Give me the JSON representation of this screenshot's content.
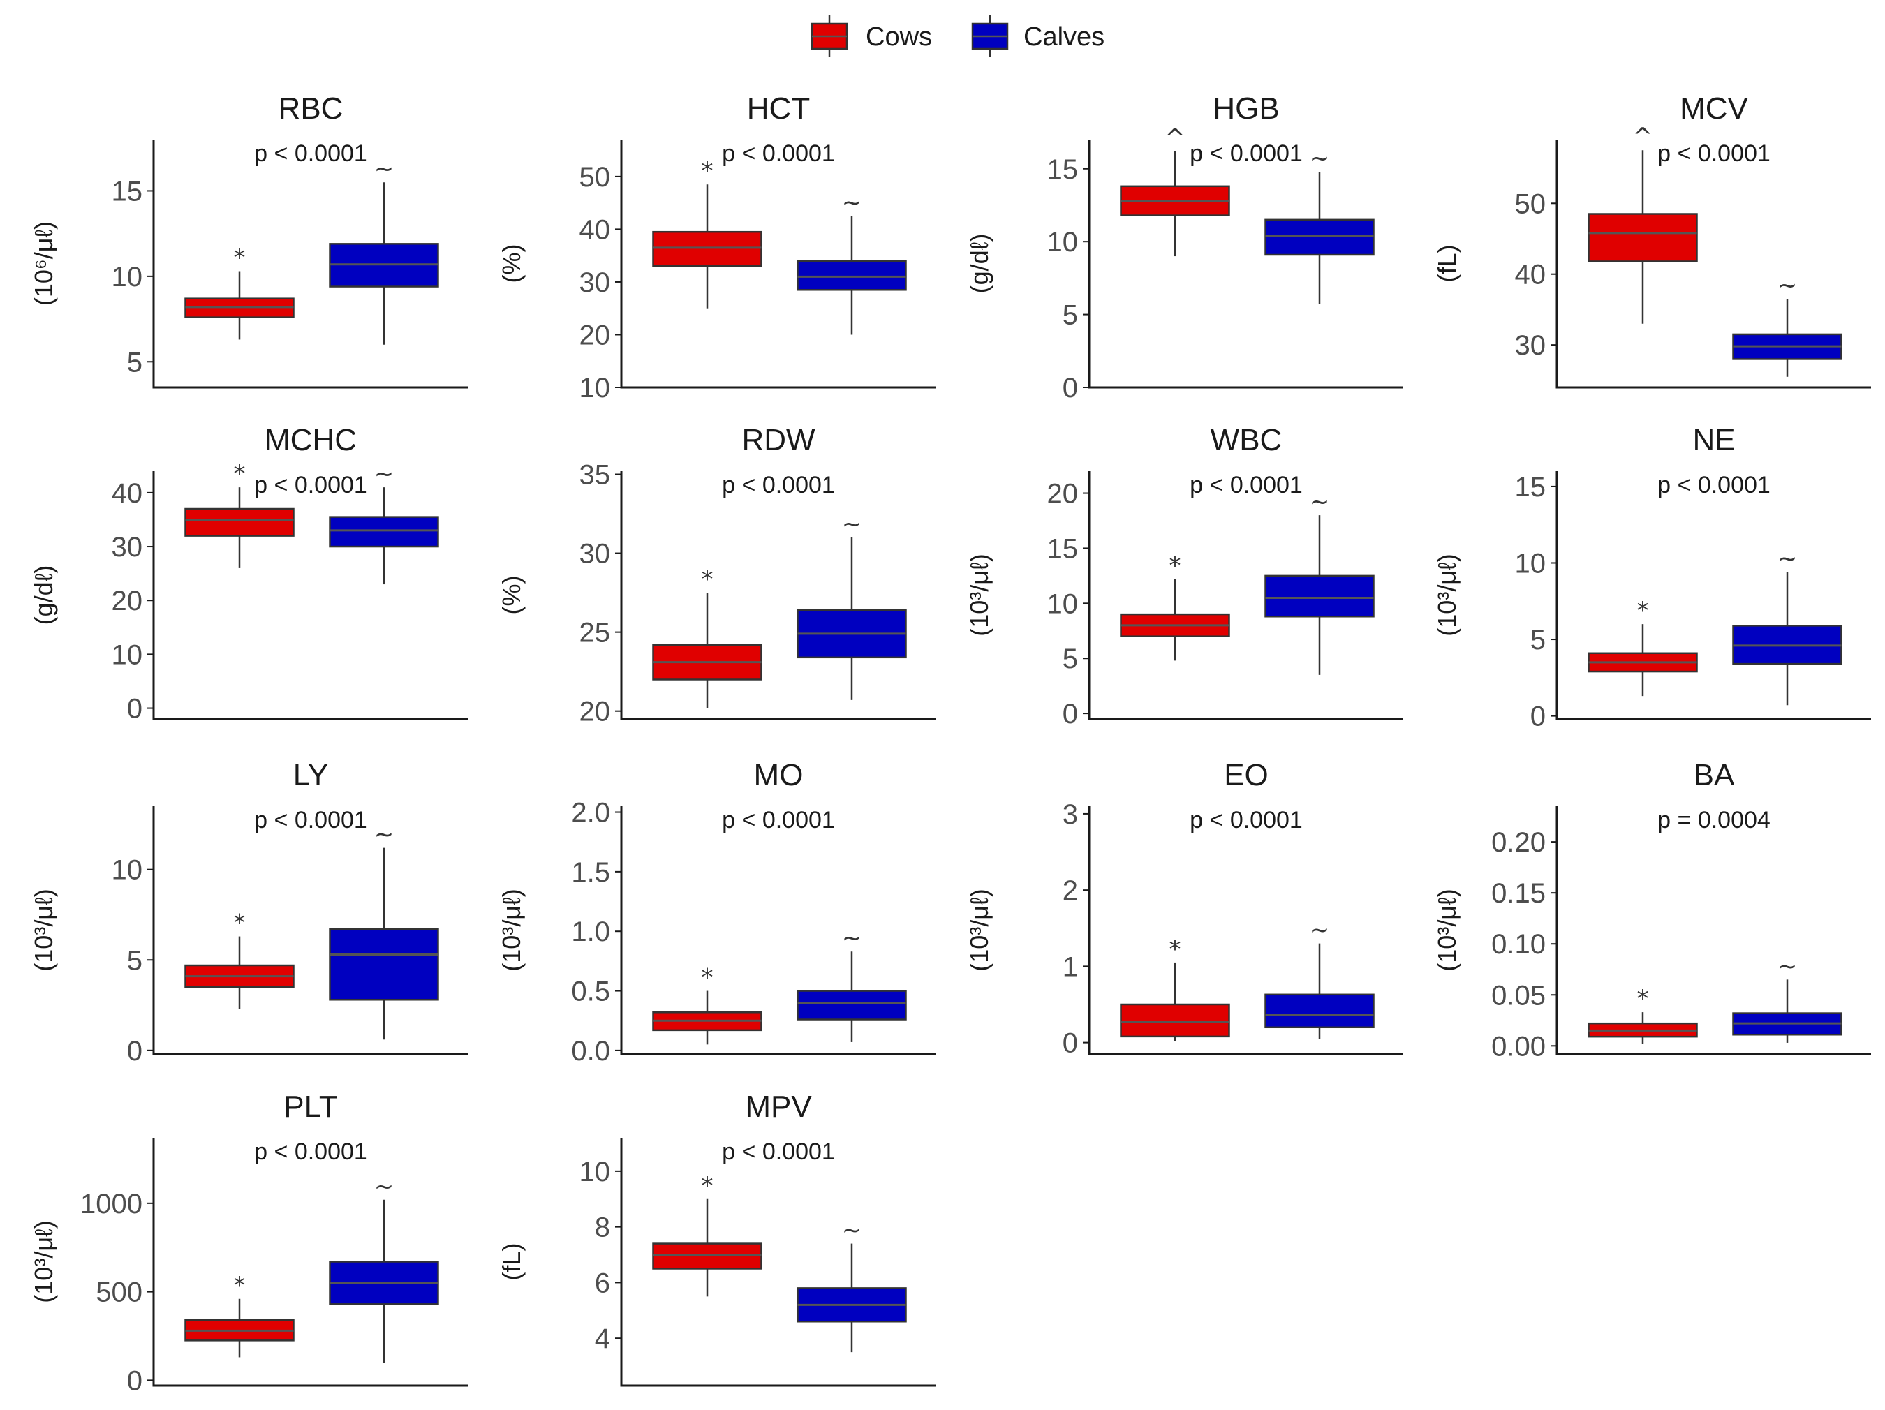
{
  "legend": {
    "position": "top-center",
    "entries": [
      {
        "label": "Cows",
        "color": "#e00000"
      },
      {
        "label": "Calves",
        "color": "#0000c0"
      }
    ]
  },
  "colors": {
    "cows": "#e00000",
    "calves": "#0000c0",
    "median": "#555555"
  },
  "chart_data": [
    {
      "type": "box",
      "title": "RBC",
      "ylabel": "(10⁶/μℓ)",
      "pvalue": "p < 0.0001",
      "ylim": [
        3.5,
        18
      ],
      "ticks": [
        5,
        10,
        15
      ],
      "series": [
        {
          "name": "Cows",
          "min": 6.3,
          "q1": 7.6,
          "median": 8.2,
          "q3": 8.7,
          "max": 10.3,
          "mark": "*"
        },
        {
          "name": "Calves",
          "min": 6.0,
          "q1": 9.4,
          "median": 10.7,
          "q3": 11.9,
          "max": 15.5,
          "mark": "~"
        }
      ]
    },
    {
      "type": "box",
      "title": "HCT",
      "ylabel": "(%)",
      "pvalue": "p < 0.0001",
      "ylim": [
        10,
        57
      ],
      "ticks": [
        10,
        20,
        30,
        40,
        50
      ],
      "series": [
        {
          "name": "Cows",
          "min": 25,
          "q1": 33,
          "median": 36.5,
          "q3": 39.5,
          "max": 48.5,
          "mark": "*"
        },
        {
          "name": "Calves",
          "min": 20,
          "q1": 28.5,
          "median": 31,
          "q3": 34,
          "max": 42.5,
          "mark": "~"
        }
      ]
    },
    {
      "type": "box",
      "title": "HGB",
      "ylabel": "(g/dℓ)",
      "pvalue": "p < 0.0001",
      "ylim": [
        0,
        17
      ],
      "ticks": [
        0,
        5,
        10,
        15
      ],
      "series": [
        {
          "name": "Cows",
          "min": 9,
          "q1": 11.8,
          "median": 12.8,
          "q3": 13.8,
          "max": 16.2,
          "mark": "^"
        },
        {
          "name": "Calves",
          "min": 5.7,
          "q1": 9.1,
          "median": 10.4,
          "q3": 11.5,
          "max": 14.8,
          "mark": "~"
        }
      ]
    },
    {
      "type": "box",
      "title": "MCV",
      "ylabel": "(fL)",
      "pvalue": "p < 0.0001",
      "ylim": [
        24,
        59
      ],
      "ticks": [
        30,
        40,
        50
      ],
      "series": [
        {
          "name": "Cows",
          "min": 33,
          "q1": 41.8,
          "median": 45.8,
          "q3": 48.5,
          "max": 57.5,
          "mark": "^"
        },
        {
          "name": "Calves",
          "min": 25.5,
          "q1": 28,
          "median": 29.8,
          "q3": 31.5,
          "max": 36.5,
          "mark": "~"
        }
      ]
    },
    {
      "type": "box",
      "title": "MCHC",
      "ylabel": "(g/dℓ)",
      "pvalue": "p < 0.0001",
      "ylim": [
        -2,
        44
      ],
      "ticks": [
        0,
        10,
        20,
        30,
        40
      ],
      "series": [
        {
          "name": "Cows",
          "min": 26,
          "q1": 32,
          "median": 35,
          "q3": 37,
          "max": 41,
          "mark": "*"
        },
        {
          "name": "Calves",
          "min": 23,
          "q1": 30,
          "median": 33,
          "q3": 35.5,
          "max": 41,
          "mark": "~"
        }
      ]
    },
    {
      "type": "box",
      "title": "RDW",
      "ylabel": "(%)",
      "pvalue": "p < 0.0001",
      "ylim": [
        19.5,
        35.2
      ],
      "ticks": [
        20,
        25,
        30,
        35
      ],
      "series": [
        {
          "name": "Cows",
          "min": 20.2,
          "q1": 22,
          "median": 23.1,
          "q3": 24.2,
          "max": 27.5,
          "mark": "*"
        },
        {
          "name": "Calves",
          "min": 20.7,
          "q1": 23.4,
          "median": 24.9,
          "q3": 26.4,
          "max": 31,
          "mark": "~"
        }
      ]
    },
    {
      "type": "box",
      "title": "WBC",
      "ylabel": "(10³/μℓ)",
      "pvalue": "p < 0.0001",
      "ylim": [
        -0.5,
        22
      ],
      "ticks": [
        0,
        5,
        10,
        15,
        20
      ],
      "series": [
        {
          "name": "Cows",
          "min": 4.8,
          "q1": 7,
          "median": 8,
          "q3": 9,
          "max": 12.2,
          "mark": "*"
        },
        {
          "name": "Calves",
          "min": 3.5,
          "q1": 8.8,
          "median": 10.5,
          "q3": 12.5,
          "max": 18,
          "mark": "~"
        }
      ]
    },
    {
      "type": "box",
      "title": "NE",
      "ylabel": "(10³/μℓ)",
      "pvalue": "p < 0.0001",
      "ylim": [
        -0.2,
        16
      ],
      "ticks": [
        0,
        5,
        10,
        15
      ],
      "series": [
        {
          "name": "Cows",
          "min": 1.3,
          "q1": 2.9,
          "median": 3.5,
          "q3": 4.1,
          "max": 6,
          "mark": "*"
        },
        {
          "name": "Calves",
          "min": 0.7,
          "q1": 3.4,
          "median": 4.6,
          "q3": 5.9,
          "max": 9.4,
          "mark": "~"
        }
      ]
    },
    {
      "type": "box",
      "title": "LY",
      "ylabel": "(10³/μℓ)",
      "pvalue": "p < 0.0001",
      "ylim": [
        -0.2,
        13.5
      ],
      "ticks": [
        0,
        5,
        10
      ],
      "series": [
        {
          "name": "Cows",
          "min": 2.3,
          "q1": 3.5,
          "median": 4.1,
          "q3": 4.7,
          "max": 6.3,
          "mark": "*"
        },
        {
          "name": "Calves",
          "min": 0.6,
          "q1": 2.8,
          "median": 5.3,
          "q3": 6.7,
          "max": 11.2,
          "mark": "~"
        }
      ]
    },
    {
      "type": "box",
      "title": "MO",
      "ylabel": "(10³/μℓ)",
      "pvalue": "p < 0.0001",
      "ylim": [
        -0.03,
        2.05
      ],
      "ticks": [
        0.0,
        0.5,
        1.0,
        1.5,
        2.0
      ],
      "tick_decimals": 1,
      "series": [
        {
          "name": "Cows",
          "min": 0.05,
          "q1": 0.17,
          "median": 0.25,
          "q3": 0.32,
          "max": 0.5,
          "mark": "*"
        },
        {
          "name": "Calves",
          "min": 0.07,
          "q1": 0.26,
          "median": 0.4,
          "q3": 0.5,
          "max": 0.83,
          "mark": "~"
        }
      ]
    },
    {
      "type": "box",
      "title": "EO",
      "ylabel": "(10³/μℓ)",
      "pvalue": "p < 0.0001",
      "ylim": [
        -0.15,
        3.1
      ],
      "ticks": [
        0,
        1,
        2,
        3
      ],
      "series": [
        {
          "name": "Cows",
          "min": 0.02,
          "q1": 0.08,
          "median": 0.27,
          "q3": 0.5,
          "max": 1.05,
          "mark": "*"
        },
        {
          "name": "Calves",
          "min": 0.05,
          "q1": 0.2,
          "median": 0.36,
          "q3": 0.63,
          "max": 1.3,
          "mark": "~"
        }
      ]
    },
    {
      "type": "box",
      "title": "BA",
      "ylabel": "(10³/μℓ)",
      "pvalue": "p = 0.0004",
      "ylim": [
        -0.008,
        0.235
      ],
      "ticks": [
        0.0,
        0.05,
        0.1,
        0.15,
        0.2
      ],
      "tick_decimals": 2,
      "series": [
        {
          "name": "Cows",
          "min": 0.002,
          "q1": 0.009,
          "median": 0.015,
          "q3": 0.022,
          "max": 0.033,
          "mark": "*"
        },
        {
          "name": "Calves",
          "min": 0.003,
          "q1": 0.011,
          "median": 0.022,
          "q3": 0.032,
          "max": 0.065,
          "mark": "~"
        }
      ]
    },
    {
      "type": "box",
      "title": "PLT",
      "ylabel": "(10³/μℓ)",
      "pvalue": "p < 0.0001",
      "ylim": [
        -30,
        1370
      ],
      "ticks": [
        0,
        500,
        1000
      ],
      "series": [
        {
          "name": "Cows",
          "min": 130,
          "q1": 225,
          "median": 280,
          "q3": 340,
          "max": 460,
          "mark": "*"
        },
        {
          "name": "Calves",
          "min": 100,
          "q1": 430,
          "median": 550,
          "q3": 670,
          "max": 1020,
          "mark": "~"
        }
      ]
    },
    {
      "type": "box",
      "title": "MPV",
      "ylabel": "(fL)",
      "pvalue": "p < 0.0001",
      "ylim": [
        2.3,
        11.2
      ],
      "ticks": [
        4,
        6,
        8,
        10
      ],
      "series": [
        {
          "name": "Cows",
          "min": 5.5,
          "q1": 6.5,
          "median": 7,
          "q3": 7.4,
          "max": 9,
          "mark": "*"
        },
        {
          "name": "Calves",
          "min": 3.5,
          "q1": 4.6,
          "median": 5.2,
          "q3": 5.8,
          "max": 7.4,
          "mark": "~"
        }
      ]
    }
  ]
}
